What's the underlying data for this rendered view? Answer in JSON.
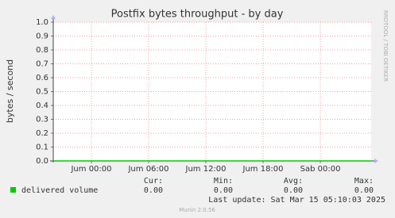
{
  "chart_data": {
    "type": "line",
    "title": "Postfix bytes throughput - by day",
    "y_label": "bytes / second",
    "side_label": "RRDTOOL / TOBI OETIKER",
    "ylim": [
      0,
      1
    ],
    "yticks": [
      {
        "value": 0,
        "label": "0.0"
      },
      {
        "value": 0.1,
        "label": "0.1"
      },
      {
        "value": 0.2,
        "label": "0.2"
      },
      {
        "value": 0.3,
        "label": "0.3"
      },
      {
        "value": 0.4,
        "label": "0.4"
      },
      {
        "value": 0.5,
        "label": "0.5"
      },
      {
        "value": 0.6,
        "label": "0.6"
      },
      {
        "value": 0.7,
        "label": "0.7"
      },
      {
        "value": 0.8,
        "label": "0.8"
      },
      {
        "value": 0.9,
        "label": "0.9"
      },
      {
        "value": 1,
        "label": "1.0"
      }
    ],
    "xlim": [
      -4,
      29.33
    ],
    "xticks": [
      {
        "value": 0,
        "label": "Jum 00:00"
      },
      {
        "value": 6,
        "label": "Jum 06:00"
      },
      {
        "value": 12,
        "label": "Jum 12:00"
      },
      {
        "value": 18,
        "label": "Jum 18:00"
      },
      {
        "value": 24,
        "label": "Sab 00:00"
      }
    ],
    "grid": true,
    "stat_headers": [
      "Cur:",
      "Min:",
      "Avg:",
      "Max:"
    ],
    "series": [
      {
        "name": "delivered volume",
        "color": "#00cc00",
        "x": [
          -4,
          29.33
        ],
        "values": [
          0,
          0
        ],
        "stats": [
          0,
          0,
          0,
          0
        ],
        "stats_labels": [
          "0.00",
          "0.00",
          "0.00",
          "0.00"
        ]
      }
    ],
    "last_update": "Last update: Sat Mar 15 05:10:03 2025",
    "footer": "Munin 2.0.56"
  }
}
